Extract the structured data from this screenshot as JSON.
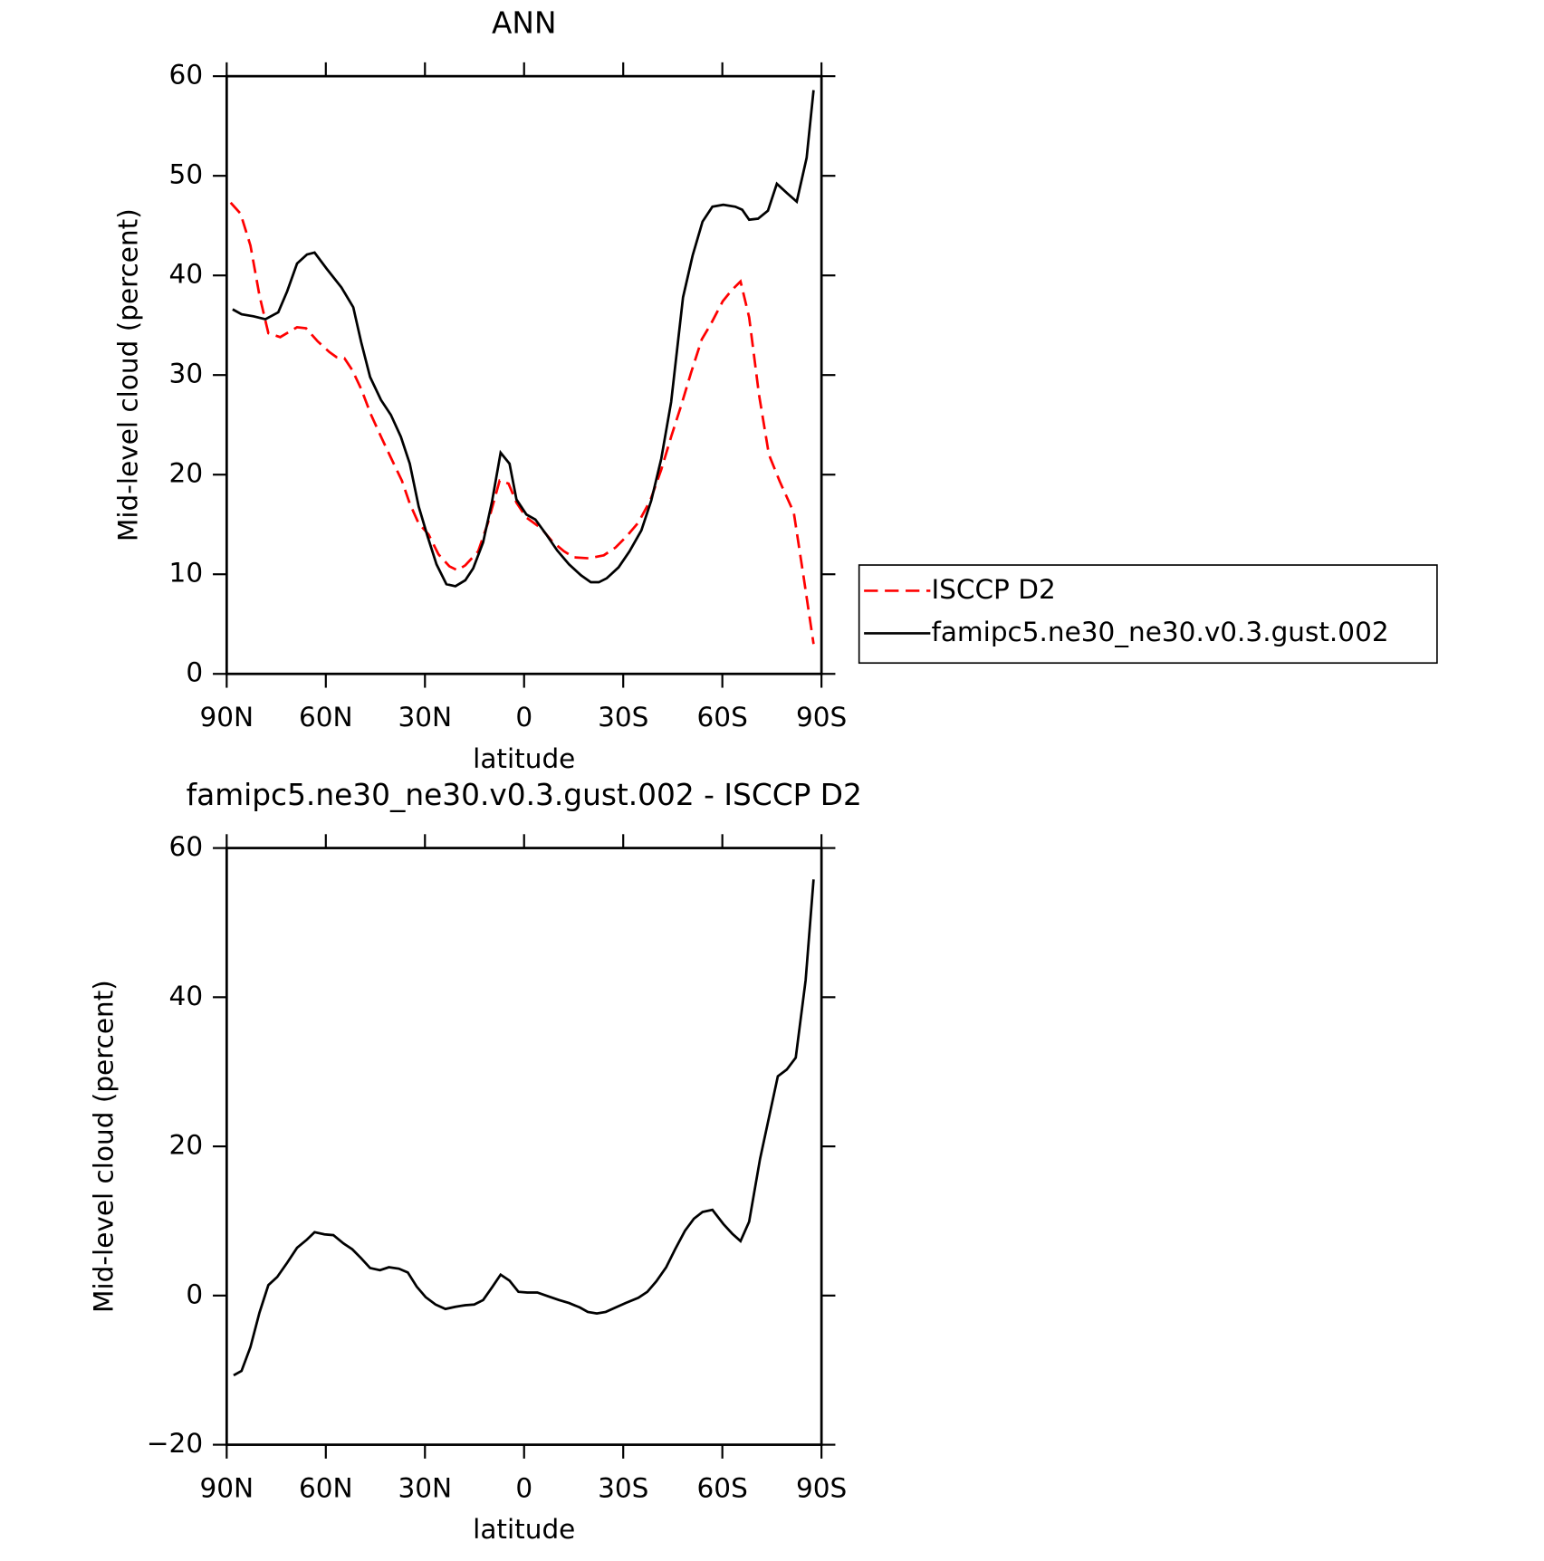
{
  "chart_data": [
    {
      "type": "line",
      "title": "ANN",
      "xlabel": "latitude",
      "ylabel": "Mid-level cloud (percent)",
      "xlim": [
        90,
        -90
      ],
      "ylim": [
        0,
        60
      ],
      "xticks": [
        {
          "value": 90,
          "label": "90N"
        },
        {
          "value": 60,
          "label": "60N"
        },
        {
          "value": 30,
          "label": "30N"
        },
        0,
        {
          "value": -30,
          "label": "30S"
        },
        {
          "value": -60,
          "label": "60S"
        },
        {
          "value": -90,
          "label": "90S"
        }
      ],
      "yticks": [
        0,
        10,
        20,
        30,
        40,
        50,
        60
      ],
      "legend": "right",
      "series": [
        {
          "name": "ISCCP D2",
          "color": "#ff0000",
          "dash": true,
          "x": [
            88.8,
            85.8,
            82.8,
            80.1,
            77.4,
            73.8,
            68.7,
            66.0,
            62.5,
            58.9,
            56.8,
            54.4,
            52.0,
            49.3,
            46.3,
            43.0,
            40.0,
            37.0,
            34.6,
            31.9,
            28.9,
            25.9,
            22.6,
            20.2,
            17.8,
            13.9,
            10.9,
            7.4,
            4.7,
            2.3,
            -0.7,
            -5.2,
            -8.5,
            -12.1,
            -15.1,
            -19.6,
            -24.1,
            -27.7,
            -31.0,
            -34.6,
            -38.2,
            -41.5,
            -44.5,
            -47.5,
            -50.5,
            -53.8,
            -56.5,
            -60.1,
            -62.8,
            -65.5,
            -68.1,
            -71.1,
            -74.1,
            -77.4,
            -81.6,
            -84.6,
            -87.6
          ],
          "values": [
            47.3,
            46.2,
            43.0,
            38.0,
            34.2,
            33.8,
            34.8,
            34.7,
            33.4,
            32.3,
            31.8,
            31.7,
            30.5,
            28.6,
            26.0,
            23.6,
            21.5,
            19.4,
            17.1,
            15.1,
            14.0,
            12.0,
            10.8,
            10.4,
            10.9,
            12.3,
            15.2,
            19.4,
            19.1,
            17.2,
            15.7,
            14.6,
            13.3,
            12.3,
            11.7,
            11.6,
            11.9,
            12.7,
            13.8,
            15.2,
            17.4,
            20.5,
            23.8,
            26.9,
            30.2,
            33.6,
            35.1,
            37.4,
            38.5,
            39.4,
            35.8,
            28.0,
            22.0,
            19.3,
            16.2,
            9.7,
            3.0
          ]
        },
        {
          "name": "famipc5.ne30_ne30.v0.3.gust.002",
          "color": "#000000",
          "dash": false,
          "x": [
            88.2,
            85.5,
            81.9,
            78.3,
            74.4,
            71.7,
            68.7,
            65.7,
            63.4,
            59.8,
            55.3,
            51.7,
            49.3,
            46.6,
            43.3,
            40.3,
            37.3,
            34.6,
            31.9,
            29.2,
            26.5,
            23.5,
            20.8,
            17.8,
            15.4,
            12.4,
            9.7,
            7.1,
            4.4,
            2.3,
            -0.7,
            -3.4,
            -6.7,
            -10.0,
            -13.6,
            -17.2,
            -20.2,
            -22.6,
            -25.0,
            -28.6,
            -31.9,
            -35.5,
            -38.5,
            -41.5,
            -44.5,
            -48.1,
            -51.0,
            -54.0,
            -57.0,
            -60.3,
            -63.9,
            -66.0,
            -68.1,
            -70.8,
            -73.8,
            -76.5,
            -79.8,
            -82.5,
            -85.5,
            -87.6
          ],
          "values": [
            36.6,
            36.1,
            35.9,
            35.6,
            36.3,
            38.4,
            41.2,
            42.1,
            42.3,
            40.7,
            38.8,
            36.8,
            33.3,
            29.8,
            27.5,
            26.0,
            23.8,
            21.1,
            16.8,
            13.8,
            11.0,
            9.0,
            8.8,
            9.4,
            10.6,
            13.2,
            17.3,
            22.2,
            21.1,
            17.5,
            16.0,
            15.5,
            14.0,
            12.4,
            11.0,
            9.9,
            9.2,
            9.2,
            9.6,
            10.7,
            12.3,
            14.4,
            17.4,
            21.6,
            27.3,
            37.8,
            42.0,
            45.4,
            46.9,
            47.1,
            46.9,
            46.6,
            45.6,
            45.7,
            46.5,
            49.2,
            48.2,
            47.4,
            51.8,
            58.6
          ]
        }
      ]
    },
    {
      "type": "line",
      "title": "famipc5.ne30_ne30.v0.3.gust.002 - ISCCP D2",
      "xlabel": "latitude",
      "ylabel": "Mid-level cloud (percent)",
      "xlim": [
        90,
        -90
      ],
      "ylim": [
        -20,
        60
      ],
      "xticks": [
        {
          "value": 90,
          "label": "90N"
        },
        {
          "value": 60,
          "label": "60N"
        },
        {
          "value": 30,
          "label": "30N"
        },
        0,
        {
          "value": -30,
          "label": "30S"
        },
        {
          "value": -60,
          "label": "60S"
        },
        {
          "value": -90,
          "label": "90S"
        }
      ],
      "yticks": [
        {
          "value": -20,
          "label": "−20"
        },
        0,
        20,
        40,
        60
      ],
      "series": [
        {
          "color": "#000000",
          "dash": false,
          "x": [
            87.9,
            85.5,
            82.8,
            80.1,
            77.4,
            74.7,
            71.7,
            68.7,
            65.7,
            63.4,
            60.4,
            57.7,
            54.7,
            52.0,
            49.3,
            46.6,
            43.6,
            40.9,
            37.9,
            35.2,
            32.5,
            29.8,
            26.8,
            23.8,
            20.8,
            17.8,
            15.1,
            12.4,
            9.7,
            7.1,
            4.4,
            1.7,
            -1.0,
            -4.0,
            -7.3,
            -10.6,
            -13.6,
            -16.9,
            -19.3,
            -22.0,
            -24.7,
            -27.7,
            -30.7,
            -34.6,
            -37.3,
            -40.0,
            -43.0,
            -45.7,
            -48.7,
            -51.4,
            -54.0,
            -57.0,
            -60.3,
            -63.0,
            -65.5,
            -68.1,
            -71.4,
            -76.8,
            -79.5,
            -82.2,
            -85.2,
            -87.6
          ],
          "values": [
            -10.7,
            -10.1,
            -6.9,
            -2.3,
            1.4,
            2.5,
            4.4,
            6.4,
            7.5,
            8.5,
            8.2,
            8.1,
            7.0,
            6.2,
            5.0,
            3.7,
            3.4,
            3.8,
            3.6,
            3.1,
            1.2,
            -0.2,
            -1.2,
            -1.8,
            -1.5,
            -1.3,
            -1.2,
            -0.6,
            1.1,
            2.8,
            2.0,
            0.5,
            0.4,
            0.4,
            -0.1,
            -0.6,
            -1.0,
            -1.6,
            -2.2,
            -2.4,
            -2.2,
            -1.6,
            -1.0,
            -0.3,
            0.5,
            1.9,
            3.8,
            6.2,
            8.7,
            10.3,
            11.2,
            11.5,
            9.6,
            8.3,
            7.3,
            9.9,
            18.3,
            29.4,
            30.3,
            31.9,
            42.3,
            55.8
          ]
        }
      ]
    }
  ]
}
